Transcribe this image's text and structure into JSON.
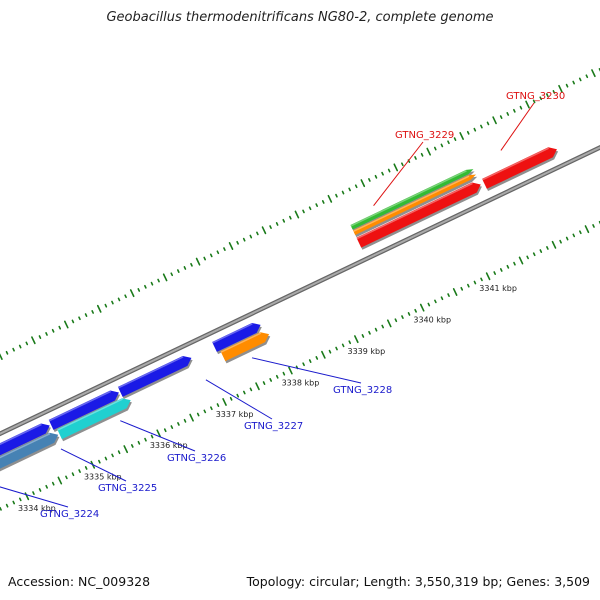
{
  "title": "Geobacillus thermodenitrificans NG80-2, complete genome",
  "accession": "Accession: NC_009328",
  "topology": "Topology: circular; Length: 3,550,319 bp; Genes: 3,509",
  "colors": {
    "blue": "#1a1ae6",
    "steelblue": "#4682b4",
    "cyan": "#20d0d0",
    "orange": "#ff8c00",
    "red": "#ee1111",
    "green": "#33bb33",
    "backbone": "#888888",
    "ticks": "#1a7a1a",
    "label_blue": "#1a1acc",
    "label_red": "#dd1111"
  },
  "chart_data": {
    "type": "genome-map",
    "unit": "kbp",
    "tick_labels": [
      {
        "kbp": 3334,
        "text": "3334 kbp"
      },
      {
        "kbp": 3335,
        "text": "3335 kbp"
      },
      {
        "kbp": 3336,
        "text": "3336 kbp"
      },
      {
        "kbp": 3337,
        "text": "3337 kbp"
      },
      {
        "kbp": 3338,
        "text": "3338 kbp"
      },
      {
        "kbp": 3339,
        "text": "3339 kbp"
      },
      {
        "kbp": 3340,
        "text": "3340 kbp"
      },
      {
        "kbp": 3341,
        "text": "3341 kbp"
      }
    ],
    "genes": [
      {
        "label": "GTNG_3224",
        "start": 3333.0,
        "end": 3334.3,
        "strand": "+",
        "color": "steelblue",
        "label_color": "label_blue"
      },
      {
        "label": "GTNG_3225",
        "start": 3334.3,
        "end": 3335.5,
        "strand": "+",
        "color": "steelblue",
        "label_color": "label_blue"
      },
      {
        "label": "GTNG_3226",
        "start": 3335.5,
        "end": 3336.5,
        "strand": "+",
        "color": "cyan",
        "label_color": "label_blue"
      },
      {
        "label": "GTNG_3227",
        "start": 3336.6,
        "end": 3337.6,
        "strand": "+",
        "color": "blue",
        "label_color": "label_blue"
      },
      {
        "label": "GTNG_3228",
        "start": 3338.0,
        "end": 3338.7,
        "strand": "+",
        "color": "orange",
        "label_color": "label_blue"
      },
      {
        "label": "GTNG_3229",
        "start": 3339.5,
        "end": 3341.3,
        "strand": "+",
        "color": "red",
        "label_color": "label_red"
      },
      {
        "label": "GTNG_3230",
        "start": 3341.5,
        "end": 3342.4,
        "strand": "+",
        "color": "red",
        "label_color": "label_red"
      }
    ]
  }
}
